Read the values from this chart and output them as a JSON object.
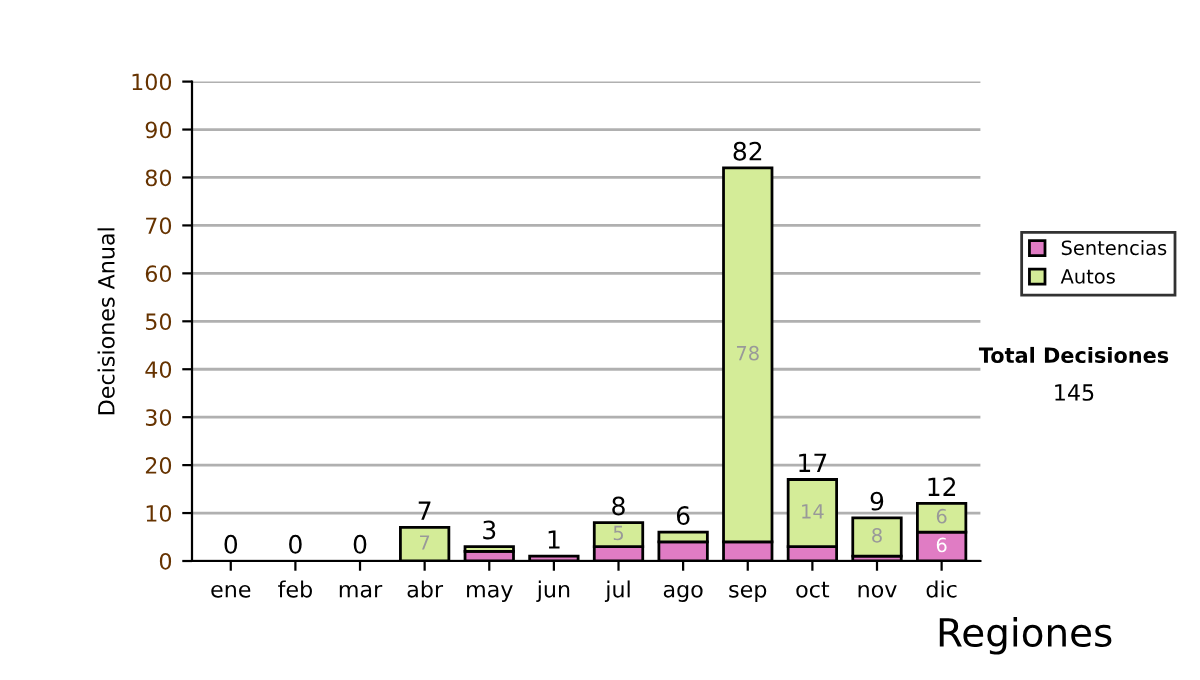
{
  "chart_data": {
    "type": "bar",
    "stacked": true,
    "ylabel": "Decisiones Anual",
    "categories": [
      "ene",
      "feb",
      "mar",
      "abr",
      "may",
      "jun",
      "jul",
      "ago",
      "sep",
      "oct",
      "nov",
      "dic"
    ],
    "series": [
      {
        "name": "Sentencias",
        "color": "#e07cc4",
        "values": [
          0,
          0,
          0,
          0,
          2,
          1,
          3,
          4,
          4,
          3,
          1,
          6
        ],
        "value_labels": [
          null,
          null,
          null,
          null,
          null,
          null,
          null,
          null,
          null,
          null,
          null,
          "6"
        ]
      },
      {
        "name": "Autos",
        "color": "#d4ec98",
        "values": [
          0,
          0,
          0,
          7,
          1,
          0,
          5,
          2,
          78,
          14,
          8,
          6
        ],
        "value_labels": [
          null,
          null,
          null,
          "7",
          null,
          null,
          "5",
          null,
          "78",
          "14",
          "8",
          "6"
        ]
      }
    ],
    "totals": [
      "0",
      "0",
      "0",
      "7",
      "3",
      "1",
      "8",
      "6",
      "82",
      "17",
      "9",
      "12"
    ],
    "ylim": [
      0,
      100
    ],
    "yticks": [
      0,
      10,
      20,
      30,
      40,
      50,
      60,
      70,
      80,
      90,
      100
    ],
    "grid": "y",
    "legend": "right",
    "annotations": [
      "Total Decisiones",
      "145",
      "Regiones"
    ]
  }
}
